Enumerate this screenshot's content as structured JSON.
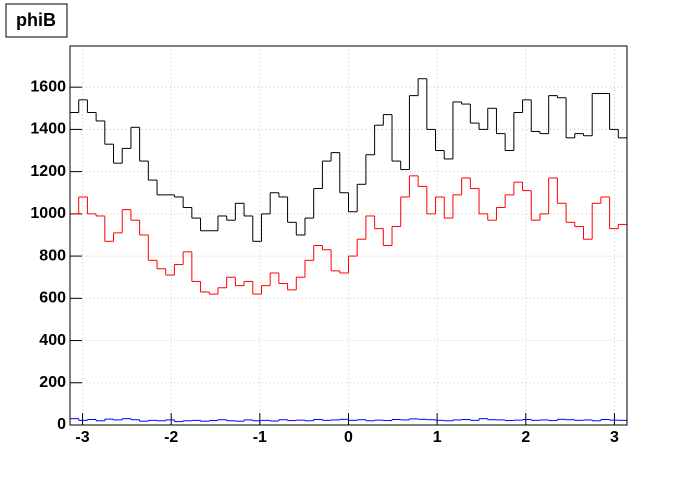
{
  "chart_data": {
    "type": "histogram",
    "title": "phiB",
    "bins": [
      -3.1416,
      -3.0434,
      -2.9452,
      -2.8471,
      -2.7489,
      -2.6507,
      -2.5525,
      -2.4544,
      -2.3562,
      -2.258,
      -2.1598,
      -2.0617,
      -1.9635,
      -1.8653,
      -1.7671,
      -1.669,
      -1.5708,
      -1.4726,
      -1.3744,
      -1.2763,
      -1.1781,
      -1.0799,
      -0.9817,
      -0.8836,
      -0.7854,
      -0.6872,
      -0.589,
      -0.4909,
      -0.3927,
      -0.2945,
      -0.1963,
      -0.0982,
      0,
      0.0982,
      0.1963,
      0.2945,
      0.3927,
      0.4909,
      0.589,
      0.6872,
      0.7854,
      0.8836,
      0.9817,
      1.0799,
      1.1781,
      1.2763,
      1.3744,
      1.4726,
      1.5708,
      1.669,
      1.7671,
      1.8653,
      1.9635,
      2.0617,
      2.1598,
      2.258,
      2.3562,
      2.4544,
      2.5525,
      2.6507,
      2.7489,
      2.8471,
      2.9452,
      3.0434,
      3.1416
    ],
    "series": [
      {
        "color": "#000000",
        "values": [
          1480,
          1540,
          1480,
          1440,
          1330,
          1240,
          1310,
          1410,
          1250,
          1160,
          1090,
          1090,
          1080,
          1030,
          980,
          920,
          920,
          990,
          970,
          1050,
          990,
          870,
          1000,
          1100,
          1080,
          960,
          900,
          980,
          1120,
          1250,
          1290,
          1100,
          1010,
          1140,
          1280,
          1420,
          1470,
          1250,
          1210,
          1560,
          1640,
          1400,
          1300,
          1260,
          1530,
          1520,
          1430,
          1400,
          1500,
          1380,
          1300,
          1480,
          1540,
          1390,
          1380,
          1560,
          1550,
          1360,
          1380,
          1370,
          1570,
          1570,
          1400,
          1360
        ]
      },
      {
        "color": "#ff0000",
        "values": [
          1000,
          1080,
          1000,
          990,
          870,
          910,
          1020,
          970,
          900,
          780,
          740,
          710,
          760,
          820,
          680,
          630,
          620,
          650,
          700,
          660,
          680,
          620,
          660,
          720,
          670,
          640,
          700,
          780,
          850,
          830,
          730,
          720,
          800,
          880,
          990,
          930,
          850,
          940,
          1080,
          1180,
          1130,
          1000,
          1080,
          980,
          1090,
          1170,
          1120,
          1000,
          970,
          1030,
          1090,
          1150,
          1110,
          970,
          1000,
          1170,
          1050,
          960,
          940,
          880,
          1050,
          1080,
          930,
          950
        ]
      },
      {
        "color": "#0000ff",
        "values": [
          30,
          22,
          26,
          20,
          28,
          24,
          30,
          25,
          18,
          22,
          20,
          24,
          16,
          20,
          22,
          18,
          21,
          25,
          20,
          18,
          24,
          20,
          22,
          19,
          25,
          21,
          23,
          20,
          26,
          22,
          24,
          27,
          22,
          25,
          20,
          23,
          21,
          26,
          24,
          29,
          27,
          25,
          22,
          20,
          24,
          26,
          22,
          30,
          25,
          24,
          21,
          23,
          26,
          22,
          24,
          21,
          27,
          25,
          22,
          24,
          20,
          26,
          23,
          22
        ]
      }
    ],
    "xlim": [
      -3.1416,
      3.1416
    ],
    "xticks": [
      -3,
      -2,
      -1,
      0,
      1,
      2,
      3
    ],
    "ylim": [
      0,
      1795
    ],
    "yticks": [
      0,
      200,
      400,
      600,
      800,
      1000,
      1200,
      1400,
      1600
    ],
    "grid": true
  }
}
